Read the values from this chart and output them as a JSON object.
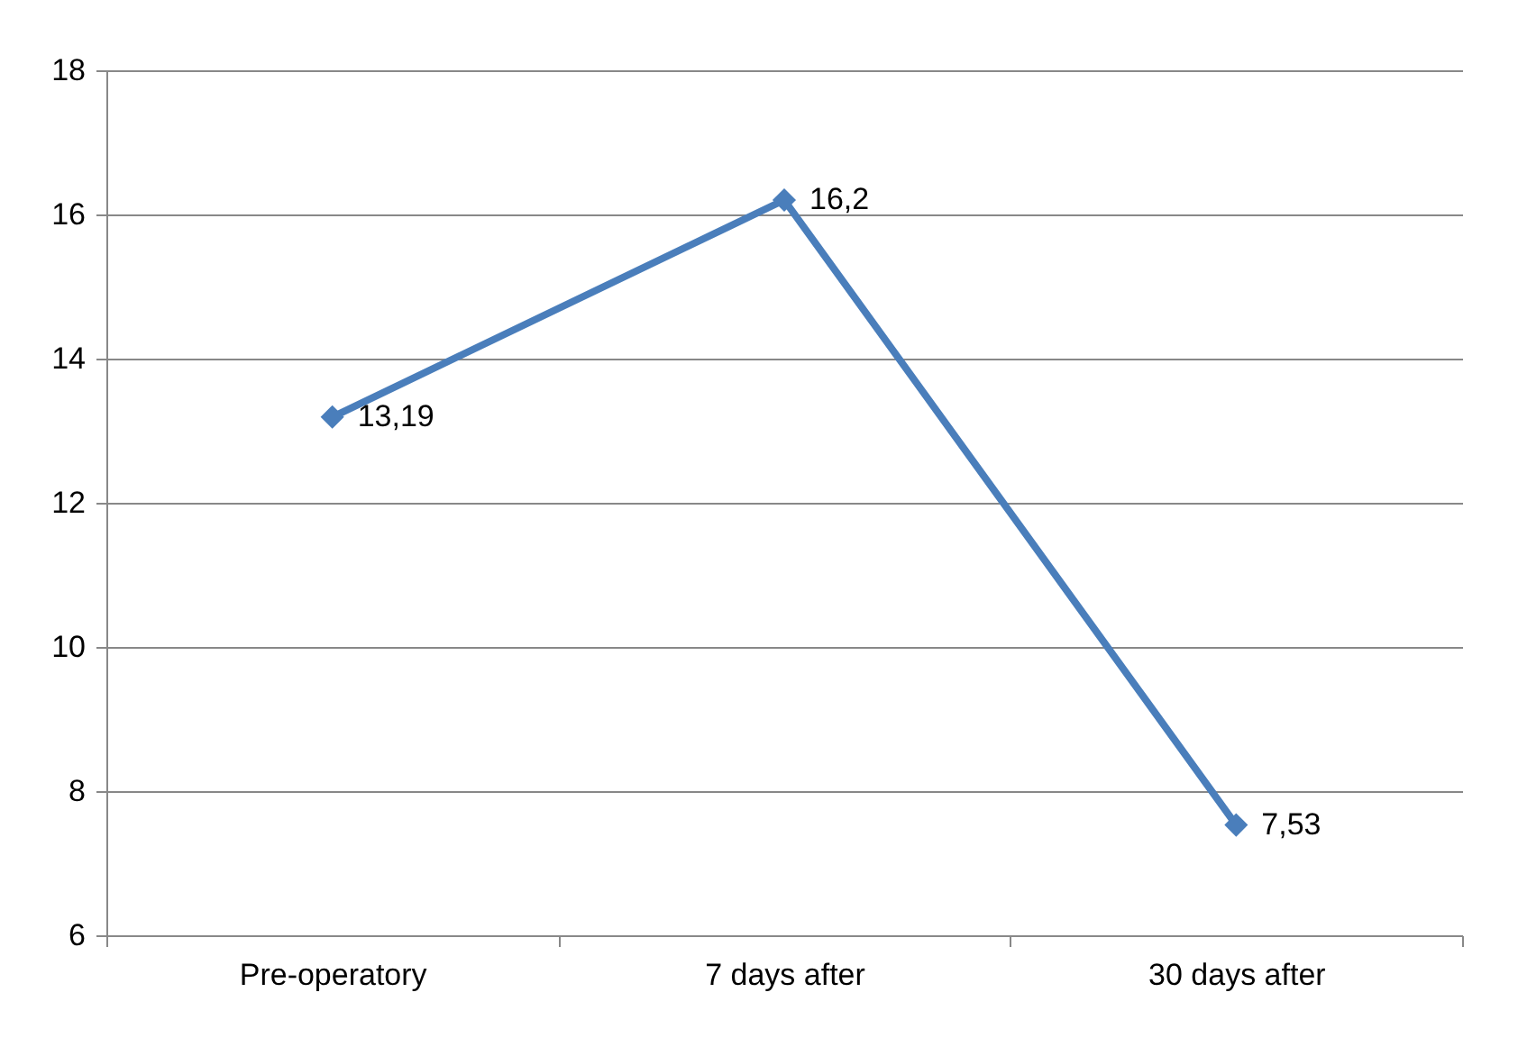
{
  "chart_data": {
    "type": "line",
    "categories": [
      "Pre-operatory",
      "7 days after",
      "30 days after"
    ],
    "series": [
      {
        "color": "#4a7ebb",
        "values": [
          13.19,
          16.2,
          7.53
        ],
        "value_labels": [
          "13,19",
          "16,2",
          "7,53"
        ]
      }
    ],
    "ylim": [
      6,
      18
    ],
    "yticks": [
      6,
      8,
      10,
      12,
      14,
      16,
      18
    ],
    "grid": "y",
    "marker": "diamond",
    "line_style": "solid"
  }
}
